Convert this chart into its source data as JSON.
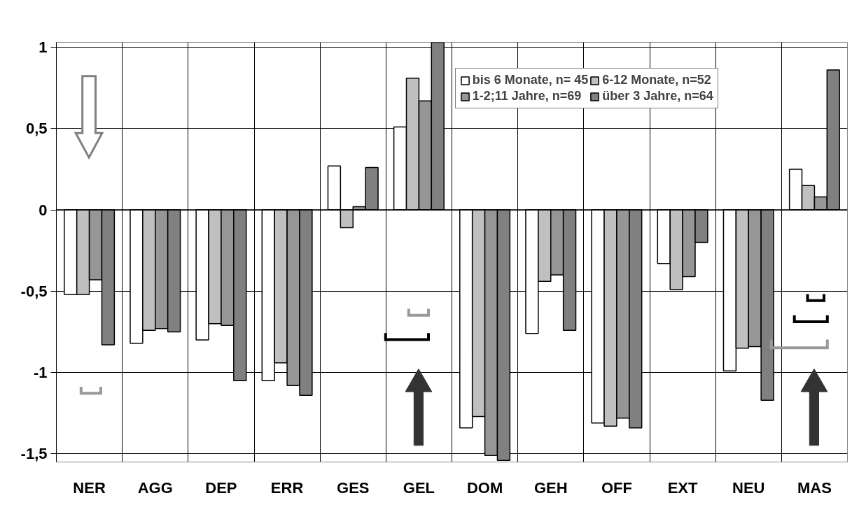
{
  "chart_data": {
    "type": "bar",
    "categories": [
      "NER",
      "AGG",
      "DEP",
      "ERR",
      "GES",
      "GEL",
      "DOM",
      "GEH",
      "OFF",
      "EXT",
      "NEU",
      "MAS"
    ],
    "series": [
      {
        "name": "bis 6 Monate, n= 45",
        "color": "#ffffff",
        "values": [
          -0.52,
          -0.82,
          -0.8,
          -1.05,
          0.27,
          0.51,
          -1.34,
          -0.76,
          -1.31,
          -0.33,
          -0.99,
          0.25
        ]
      },
      {
        "name": "6-12 Monate, n=52",
        "color": "#c0c0c0",
        "values": [
          -0.52,
          -0.74,
          -0.7,
          -0.94,
          -0.11,
          0.81,
          -1.27,
          -0.44,
          -1.33,
          -0.49,
          -0.85,
          0.15
        ]
      },
      {
        "name": "1-2;11 Jahre, n=69",
        "color": "#969696",
        "values": [
          -0.43,
          -0.73,
          -0.71,
          -1.08,
          0.02,
          0.67,
          -1.51,
          -0.4,
          -1.28,
          -0.41,
          -0.84,
          0.08
        ]
      },
      {
        "name": "über 3 Jahre, n=64",
        "color": "#808080",
        "values": [
          -0.83,
          -0.75,
          -1.05,
          -1.14,
          0.26,
          1.03,
          -1.54,
          -0.74,
          -1.34,
          -0.2,
          -1.17,
          0.86
        ]
      }
    ],
    "ylim": [
      -1.55,
      1.03
    ],
    "yticks": [
      {
        "value": -1.5,
        "label": "-1,5"
      },
      {
        "value": -1,
        "label": "-1"
      },
      {
        "value": -0.5,
        "label": "-0,5"
      },
      {
        "value": 0,
        "label": "0"
      },
      {
        "value": 0.5,
        "label": "0,5"
      },
      {
        "value": 1,
        "label": "1"
      }
    ],
    "grid": true,
    "legend": "top right"
  }
}
